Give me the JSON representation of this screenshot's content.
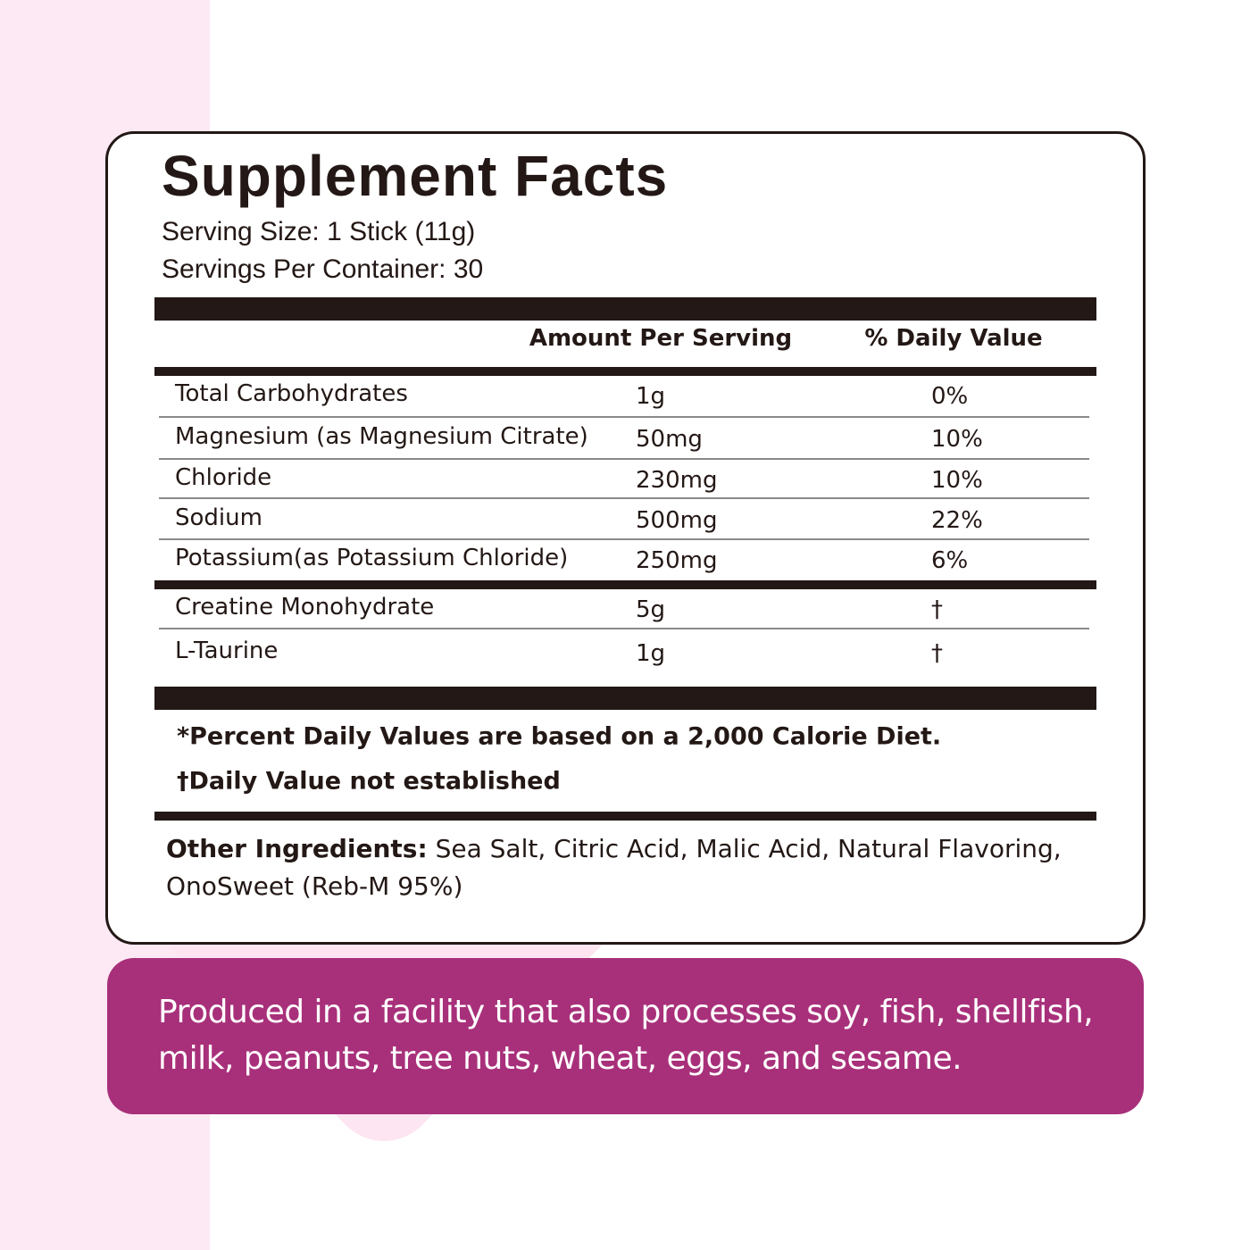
{
  "header": {
    "title": "Supplement Facts",
    "serving_size": "Serving Size: 1 Stick (11g)",
    "servings_per_container": "Servings Per Container: 30"
  },
  "table": {
    "columns": [
      "Amount Per Serving",
      "% Daily Value"
    ],
    "rows": [
      [
        "Total Carbohydrates",
        "1g",
        "0%"
      ],
      [
        "Magnesium (as Magnesium Citrate)",
        "50mg",
        "10%"
      ],
      [
        "Chloride",
        "230mg",
        "10%"
      ],
      [
        "Sodium",
        "500mg",
        "22%"
      ],
      [
        "Potassium(as Potassium Chloride)",
        "250mg",
        "6%"
      ],
      [
        "Creatine Monohydrate",
        "5g",
        "†"
      ],
      [
        "L-Taurine",
        "1g",
        "†"
      ]
    ]
  },
  "footnotes": [
    "*Percent Daily Values are based on a 2,000 Calorie Diet.",
    "†Daily Value not established"
  ],
  "other_ingredients": {
    "label": "Other Ingredients:",
    "text": " Sea Salt, Citric Acid, Malic Acid, Natural Flavoring, OnoSweet (Reb-M 95%)"
  },
  "allergen_notice": "Produced in a facility that also processes soy, fish, shellfish, milk, peanuts, tree nuts, wheat, eggs, and sesame."
}
